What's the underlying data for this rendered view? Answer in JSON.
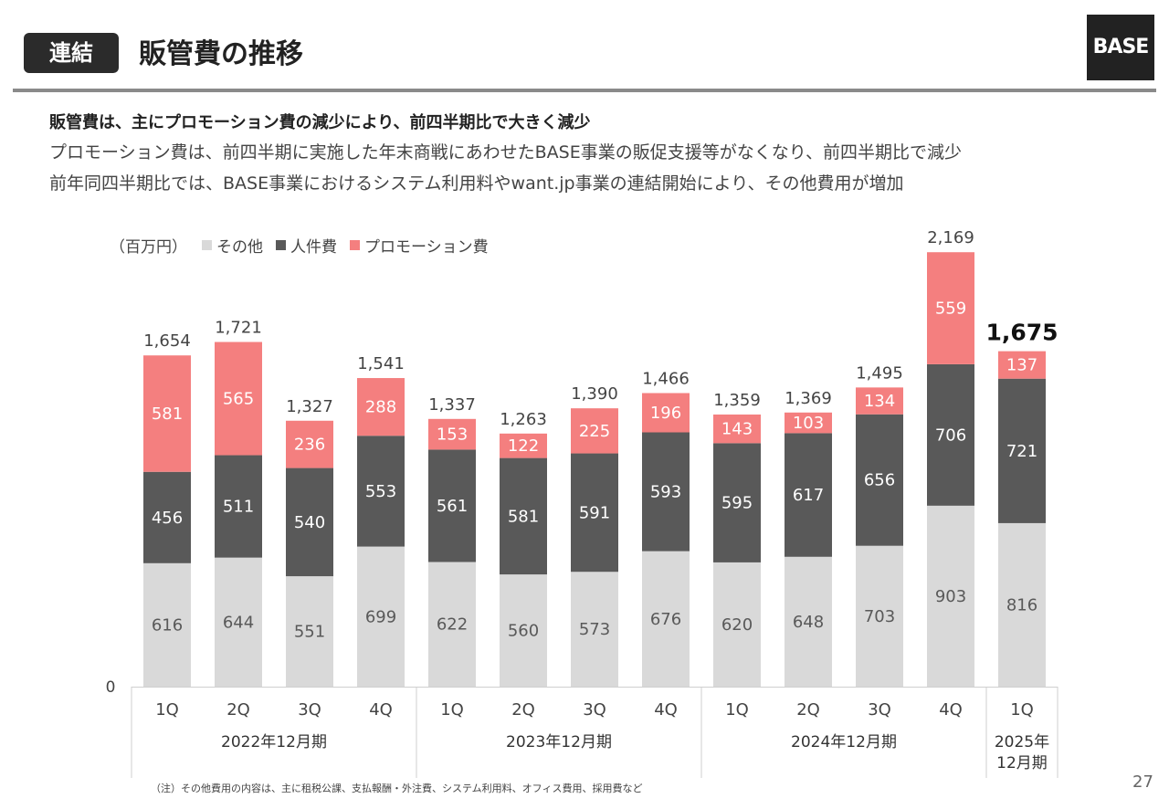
{
  "header": {
    "badge": "連結",
    "title": "販管費の推移",
    "logo": "BASE"
  },
  "summary": {
    "lead": "販管費は、主にプロモーション費の減少により、前四半期比で大きく減少",
    "line1": "プロモーション費は、前四半期に実施した年末商戦にあわせたBASE事業の販促支援等がなくなり、前四半期比で減少",
    "line2": "前年同四半期比では、BASE事業におけるシステム利用料やwant.jp事業の連結開始により、その他費用が増加"
  },
  "legend": {
    "unit": "（百万円）",
    "items": [
      {
        "label": "その他",
        "color": "#d9d9d9"
      },
      {
        "label": "人件費",
        "color": "#595959"
      },
      {
        "label": "プロモーション費",
        "color": "#f47f7f"
      }
    ]
  },
  "chart_data": {
    "type": "bar",
    "stacked": true,
    "categories": [
      "1Q",
      "2Q",
      "3Q",
      "4Q",
      "1Q",
      "2Q",
      "3Q",
      "4Q",
      "1Q",
      "2Q",
      "3Q",
      "4Q",
      "1Q"
    ],
    "groups": [
      {
        "label": "2022年12月期",
        "span": 4
      },
      {
        "label": "2023年12月期",
        "span": 4
      },
      {
        "label": "2024年12月期",
        "span": 4
      },
      {
        "label": "2025年\n12月期",
        "span": 1
      }
    ],
    "series": [
      {
        "name": "その他",
        "color": "#d9d9d9",
        "label_color": "#595959",
        "values": [
          616,
          644,
          551,
          699,
          622,
          560,
          573,
          676,
          620,
          648,
          703,
          903,
          816
        ]
      },
      {
        "name": "人件費",
        "color": "#595959",
        "label_color": "#ffffff",
        "values": [
          456,
          511,
          540,
          553,
          561,
          581,
          591,
          593,
          595,
          617,
          656,
          706,
          721
        ]
      },
      {
        "name": "プロモーション費",
        "color": "#f47f7f",
        "label_color": "#ffffff",
        "values": [
          581,
          565,
          236,
          288,
          153,
          122,
          225,
          196,
          143,
          103,
          134,
          559,
          137
        ]
      }
    ],
    "totals": [
      "1,654",
      "1,721",
      "1,327",
      "1,541",
      "1,337",
      "1,263",
      "1,390",
      "1,466",
      "1,359",
      "1,369",
      "1,495",
      "2,169",
      "1,675"
    ],
    "highlight_last_total": true,
    "y_zero_label": "0",
    "ylim": [
      0,
      2169
    ],
    "grid": false
  },
  "footnote": "（注）その他費用の内容は、主に租税公課、支払報酬・外注費、システム利用料、オフィス費用、採用費など",
  "page_number": "27"
}
